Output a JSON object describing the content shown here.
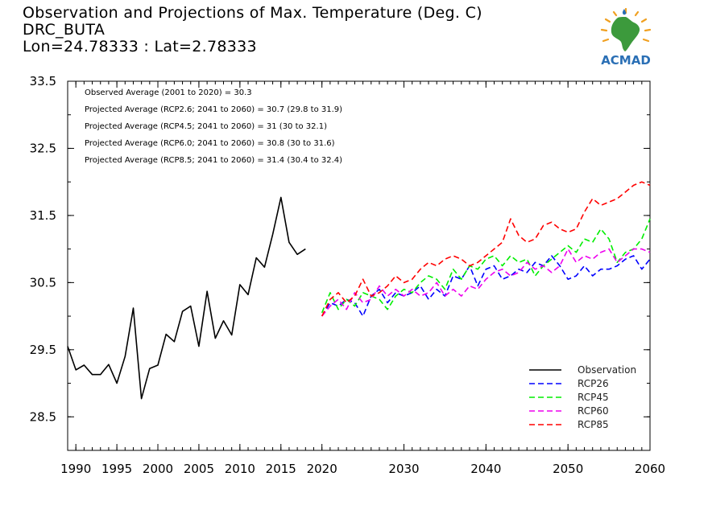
{
  "header": {
    "title": "Observation and Projections of Max. Temperature (Deg. C)",
    "station": "DRC_BUTA",
    "coords": "Lon=24.78333 : Lat=2.78333"
  },
  "logo": {
    "text": "ACMAD",
    "colors": {
      "blue": "#2a6fb5",
      "orange": "#f0a020",
      "green": "#3c9a3c"
    }
  },
  "chart_data": {
    "type": "line",
    "xlim": [
      1989,
      2060
    ],
    "ylim": [
      28.0,
      33.5
    ],
    "grid": false,
    "legend_placement": "bottom-right",
    "xticks": [
      {
        "value": 1990,
        "label": "1990"
      },
      {
        "value": 1995,
        "label": "1995"
      },
      {
        "value": 2000,
        "label": "2000"
      },
      {
        "value": 2005,
        "label": "2005"
      },
      {
        "value": 2010,
        "label": "2010"
      },
      {
        "value": 2015,
        "label": "2015"
      },
      {
        "value": 2020,
        "label": "2020"
      },
      {
        "value": 2030,
        "label": "2030"
      },
      {
        "value": 2040,
        "label": "2040"
      },
      {
        "value": 2050,
        "label": "2050"
      },
      {
        "value": 2060,
        "label": "2060"
      }
    ],
    "yticks": [
      {
        "value": 28.5,
        "label": "28.5"
      },
      {
        "value": 29.5,
        "label": "29.5"
      },
      {
        "value": 30.5,
        "label": "30.5"
      },
      {
        "value": 31.5,
        "label": "31.5"
      },
      {
        "value": 32.5,
        "label": "32.5"
      },
      {
        "value": 33.5,
        "label": "33.5"
      }
    ],
    "annotations": [
      "Observed Average (2001 to 2020) = 30.3",
      "Projected Average (RCP2.6; 2041 to 2060) = 30.7 (29.8 to 31.9)",
      "Projected Average (RCP4.5; 2041 to 2060) = 31 (30 to 32.1)",
      "Projected Average (RCP6.0; 2041 to 2060) = 30.8 (30 to 31.6)",
      "Projected Average (RCP8.5; 2041 to 2060) = 31.4 (30.4 to 32.4)"
    ],
    "series": [
      {
        "name": "Observation",
        "color": "#000000",
        "dashed": false,
        "x": [
          1989,
          1990,
          1991,
          1992,
          1993,
          1994,
          1995,
          1996,
          1997,
          1998,
          1999,
          2000,
          2001,
          2002,
          2003,
          2004,
          2005,
          2006,
          2007,
          2008,
          2009,
          2010,
          2011,
          2012,
          2013,
          2014,
          2015,
          2016,
          2017,
          2018,
          2019
        ],
        "y": [
          29.55,
          29.2,
          29.27,
          29.13,
          29.13,
          29.28,
          29.0,
          29.4,
          30.12,
          28.77,
          29.22,
          29.27,
          29.73,
          29.62,
          30.07,
          30.15,
          29.55,
          30.37,
          29.67,
          29.93,
          29.72,
          30.47,
          30.32,
          30.87,
          30.73,
          31.22,
          31.77,
          31.1,
          30.92,
          31.0,
          null
        ]
      },
      {
        "name": "RCP26",
        "color": "#0000ff",
        "dashed": true,
        "x": [
          2020,
          2021,
          2022,
          2023,
          2024,
          2025,
          2026,
          2027,
          2028,
          2029,
          2030,
          2031,
          2032,
          2033,
          2034,
          2035,
          2036,
          2037,
          2038,
          2039,
          2040,
          2041,
          2042,
          2043,
          2044,
          2045,
          2046,
          2047,
          2048,
          2049,
          2050,
          2051,
          2052,
          2053,
          2054,
          2055,
          2056,
          2057,
          2058,
          2059,
          2060
        ],
        "y": [
          30.0,
          30.2,
          30.15,
          30.25,
          30.2,
          30.0,
          30.3,
          30.4,
          30.2,
          30.35,
          30.3,
          30.35,
          30.45,
          30.25,
          30.4,
          30.3,
          30.6,
          30.55,
          30.75,
          30.45,
          30.7,
          30.75,
          30.55,
          30.6,
          30.7,
          30.65,
          30.8,
          30.75,
          30.9,
          30.75,
          30.55,
          30.6,
          30.75,
          30.6,
          30.7,
          30.7,
          30.75,
          30.85,
          30.9,
          30.7,
          30.85
        ]
      },
      {
        "name": "RCP45",
        "color": "#00ee00",
        "dashed": true,
        "x": [
          2020,
          2021,
          2022,
          2023,
          2024,
          2025,
          2026,
          2027,
          2028,
          2029,
          2030,
          2031,
          2032,
          2033,
          2034,
          2035,
          2036,
          2037,
          2038,
          2039,
          2040,
          2041,
          2042,
          2043,
          2044,
          2045,
          2046,
          2047,
          2048,
          2049,
          2050,
          2051,
          2052,
          2053,
          2054,
          2055,
          2056,
          2057,
          2058,
          2059,
          2060
        ],
        "y": [
          30.05,
          30.35,
          30.1,
          30.25,
          30.15,
          30.35,
          30.3,
          30.25,
          30.1,
          30.3,
          30.4,
          30.35,
          30.5,
          30.6,
          30.55,
          30.4,
          30.7,
          30.55,
          30.75,
          30.7,
          30.85,
          30.9,
          30.75,
          30.9,
          30.8,
          30.85,
          30.6,
          30.75,
          30.85,
          30.95,
          31.05,
          30.95,
          31.15,
          31.1,
          31.3,
          31.15,
          30.8,
          30.95,
          31.0,
          31.15,
          31.45
        ]
      },
      {
        "name": "RCP60",
        "color": "#ee00ee",
        "dashed": true,
        "x": [
          2020,
          2021,
          2022,
          2023,
          2024,
          2025,
          2026,
          2027,
          2028,
          2029,
          2030,
          2031,
          2032,
          2033,
          2034,
          2035,
          2036,
          2037,
          2038,
          2039,
          2040,
          2041,
          2042,
          2043,
          2044,
          2045,
          2046,
          2047,
          2048,
          2049,
          2050,
          2051,
          2052,
          2053,
          2054,
          2055,
          2056,
          2057,
          2058,
          2059,
          2060
        ],
        "y": [
          30.0,
          30.15,
          30.25,
          30.1,
          30.35,
          30.2,
          30.25,
          30.45,
          30.3,
          30.4,
          30.3,
          30.4,
          30.3,
          30.35,
          30.5,
          30.3,
          30.4,
          30.3,
          30.45,
          30.4,
          30.55,
          30.65,
          30.7,
          30.6,
          30.65,
          30.8,
          30.7,
          30.75,
          30.65,
          30.75,
          31.0,
          30.8,
          30.9,
          30.85,
          30.95,
          31.0,
          30.8,
          30.9,
          31.0,
          31.0,
          30.95
        ]
      },
      {
        "name": "RCP85",
        "color": "#ff0000",
        "dashed": true,
        "x": [
          2020,
          2021,
          2022,
          2023,
          2024,
          2025,
          2026,
          2027,
          2028,
          2029,
          2030,
          2031,
          2032,
          2033,
          2034,
          2035,
          2036,
          2037,
          2038,
          2039,
          2040,
          2041,
          2042,
          2043,
          2044,
          2045,
          2046,
          2047,
          2048,
          2049,
          2050,
          2051,
          2052,
          2053,
          2054,
          2055,
          2056,
          2057,
          2058,
          2059,
          2060
        ],
        "y": [
          30.0,
          30.25,
          30.35,
          30.2,
          30.3,
          30.55,
          30.3,
          30.35,
          30.45,
          30.6,
          30.5,
          30.55,
          30.7,
          30.8,
          30.75,
          30.85,
          30.9,
          30.85,
          30.75,
          30.8,
          30.9,
          31.0,
          31.1,
          31.45,
          31.2,
          31.1,
          31.15,
          31.35,
          31.4,
          31.3,
          31.25,
          31.3,
          31.55,
          31.75,
          31.65,
          31.7,
          31.75,
          31.85,
          31.95,
          32.0,
          31.95
        ]
      }
    ]
  }
}
